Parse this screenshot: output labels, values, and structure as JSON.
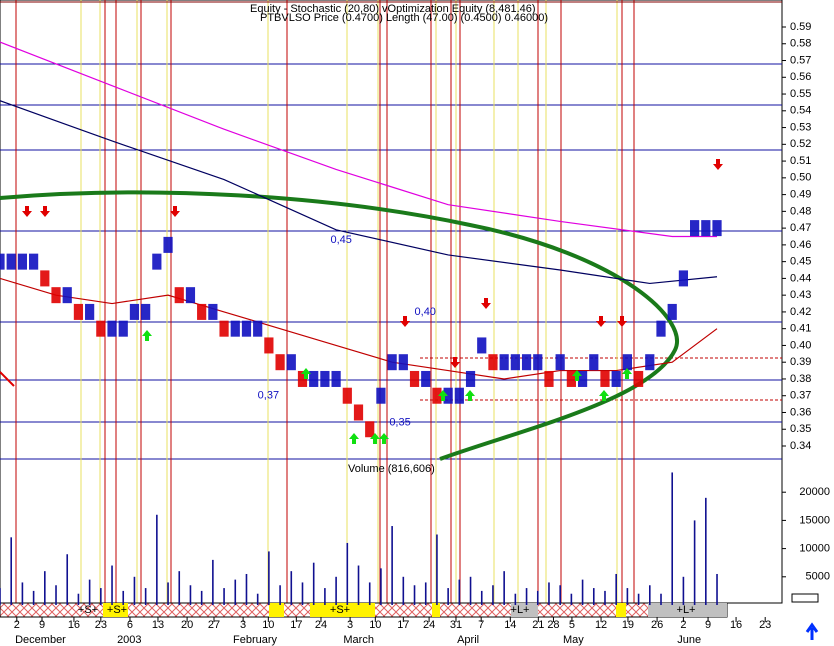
{
  "chart_data": {
    "type": "bar",
    "title": "Equity - Stochastic (20,80) vOptimization Equity (8,481.46)",
    "subtitle": "PTBVLSO Price (0.4700) Length (47.00) (0.4500) 0.46000)",
    "volume_title": "Volume (816,606)",
    "annotations": [
      {
        "label": "0,45",
        "x": 59,
        "y": 0.463
      },
      {
        "label": "0,40",
        "x": 74,
        "y": 0.42
      },
      {
        "label": "0,37",
        "x": 46,
        "y": 0.37
      },
      {
        "label": "0,35",
        "x": 69.5,
        "y": 0.354
      }
    ],
    "band_labels": [
      "+S+",
      "+S+",
      "+S+",
      "+L+",
      "+L+"
    ],
    "x": [
      0,
      2,
      4,
      6,
      8,
      10,
      12,
      14,
      16,
      18,
      20,
      22,
      24,
      26,
      28,
      30,
      32,
      34,
      36,
      38,
      40,
      42,
      44,
      46,
      48,
      50,
      52,
      54,
      56,
      58,
      60,
      62,
      64,
      66,
      68,
      70,
      72,
      74,
      76,
      78,
      80,
      82,
      84,
      86,
      88,
      90,
      92,
      94,
      96,
      98,
      100,
      102,
      104,
      106,
      108,
      110,
      112,
      114,
      116,
      118,
      120,
      122,
      124,
      126,
      128
    ],
    "series": [
      {
        "values": [
          0.45,
          0.45,
          0.45,
          0.45,
          0.44,
          0.43,
          0.43,
          0.42,
          0.42,
          0.41,
          0.41,
          0.41,
          0.42,
          0.42,
          0.45,
          0.46,
          0.43,
          0.43,
          0.42,
          0.42,
          0.41,
          0.41,
          0.41,
          0.41,
          0.4,
          0.39,
          0.39,
          0.38,
          0.38,
          0.38,
          0.38,
          0.37,
          0.36,
          0.35,
          0.37,
          0.39,
          0.39,
          0.38,
          0.38,
          0.37,
          0.37,
          0.37,
          0.38,
          0.4,
          0.39,
          0.39,
          0.39,
          0.39,
          0.39,
          0.38,
          0.39,
          0.38,
          0.38,
          0.39,
          0.38,
          0.38,
          0.39,
          0.38,
          0.39,
          0.41,
          0.42,
          0.44,
          0.47,
          0.47,
          0.47
        ],
        "up_color": "#1010c0",
        "down_color": "#e00000"
      },
      {
        "axis": "volume",
        "color": "#101090",
        "values": [
          3000,
          12000,
          4000,
          2500,
          6000,
          3500,
          9000,
          2000,
          4500,
          3000,
          7000,
          2500,
          5000,
          3000,
          16000,
          4000,
          6000,
          3500,
          2500,
          8000,
          3000,
          4500,
          5500,
          2000,
          9500,
          3500,
          6000,
          4000,
          7500,
          3000,
          5000,
          11000,
          7000,
          4000,
          6500,
          14000,
          5000,
          3500,
          4000,
          12500,
          3000,
          4500,
          5000,
          2500,
          3500,
          6000,
          2000,
          3000,
          2500,
          4000,
          3500,
          2000,
          4500,
          3000,
          2500,
          5500,
          3000,
          2000,
          3500,
          2000,
          23500,
          5000,
          15000,
          19000,
          5500
        ]
      }
    ],
    "lines": [
      {
        "color": "#e000e0",
        "x": [
          0,
          20,
          40,
          60,
          80,
          100,
          120,
          128
        ],
        "values": [
          0.581,
          0.555,
          0.529,
          0.505,
          0.484,
          0.474,
          0.465,
          0.465
        ]
      },
      {
        "color": "#000060",
        "x": [
          0,
          20,
          40,
          60,
          80,
          100,
          116,
          128
        ],
        "values": [
          0.546,
          0.522,
          0.499,
          0.469,
          0.454,
          0.445,
          0.437,
          0.441
        ]
      },
      {
        "color": "#c00000",
        "x": [
          0,
          10,
          20,
          30,
          40,
          50,
          60,
          70,
          80,
          90,
          100,
          110,
          120,
          128
        ],
        "values": [
          0.44,
          0.43,
          0.425,
          0.43,
          0.42,
          0.41,
          0.4,
          0.39,
          0.385,
          0.38,
          0.385,
          0.385,
          0.39,
          0.41
        ]
      }
    ],
    "xlim": [
      0,
      139.6
    ],
    "ylim": [
      0.34,
      0.59
    ],
    "yticks": [
      0.59,
      0.58,
      0.57,
      0.56,
      0.55,
      0.54,
      0.53,
      0.52,
      0.51,
      {
        "value": 0.5,
        "label": "0.50"
      },
      0.49,
      0.48,
      0.47,
      0.46,
      0.45,
      0.44,
      0.43,
      0.42,
      0.41,
      {
        "value": 0.4,
        "label": "0.40"
      },
      0.39,
      0.38,
      0.37,
      0.36,
      0.35,
      0.34
    ],
    "vlim": [
      0,
      25000
    ],
    "vticks": [
      5000,
      10000,
      15000,
      20000
    ],
    "xticks": [
      {
        "value": 3,
        "label": "2"
      },
      {
        "value": 7.5,
        "label": "9"
      },
      {
        "value": 13.2,
        "label": "16"
      },
      {
        "value": 18,
        "label": "23"
      },
      {
        "value": 23.2,
        "label": "6"
      },
      {
        "value": 28.2,
        "label": "13"
      },
      {
        "value": 33.4,
        "label": "20"
      },
      {
        "value": 38.2,
        "label": "27"
      },
      {
        "value": 43.4,
        "label": "3"
      },
      {
        "value": 47.9,
        "label": "10"
      },
      {
        "value": 52.9,
        "label": "17"
      },
      {
        "value": 57.3,
        "label": "24"
      },
      {
        "value": 62.5,
        "label": "3"
      },
      {
        "value": 67,
        "label": "10"
      },
      {
        "value": 72,
        "label": "17"
      },
      {
        "value": 76.6,
        "label": "24"
      },
      {
        "value": 81.4,
        "label": "31"
      },
      {
        "value": 85.9,
        "label": "7"
      },
      {
        "value": 91.1,
        "label": "14"
      },
      {
        "value": 96.1,
        "label": "21"
      },
      {
        "value": 98.8,
        "label": "28"
      },
      {
        "value": 102.1,
        "label": "5"
      },
      {
        "value": 107.3,
        "label": "12"
      },
      {
        "value": 112.1,
        "label": "19"
      },
      {
        "value": 117.3,
        "label": "26"
      },
      {
        "value": 122,
        "label": "2"
      },
      {
        "value": 126.4,
        "label": "9"
      },
      {
        "value": 131.4,
        "label": "16"
      },
      {
        "value": 136.6,
        "label": "23"
      }
    ],
    "months": [
      {
        "value": 2.7,
        "label": "December"
      },
      {
        "value": 20.9,
        "label": "2003"
      },
      {
        "value": 41.6,
        "label": "February"
      },
      {
        "value": 61.3,
        "label": "March"
      },
      {
        "value": 81.6,
        "label": "April"
      },
      {
        "value": 100.5,
        "label": "May"
      },
      {
        "value": 120.9,
        "label": "June"
      }
    ]
  }
}
